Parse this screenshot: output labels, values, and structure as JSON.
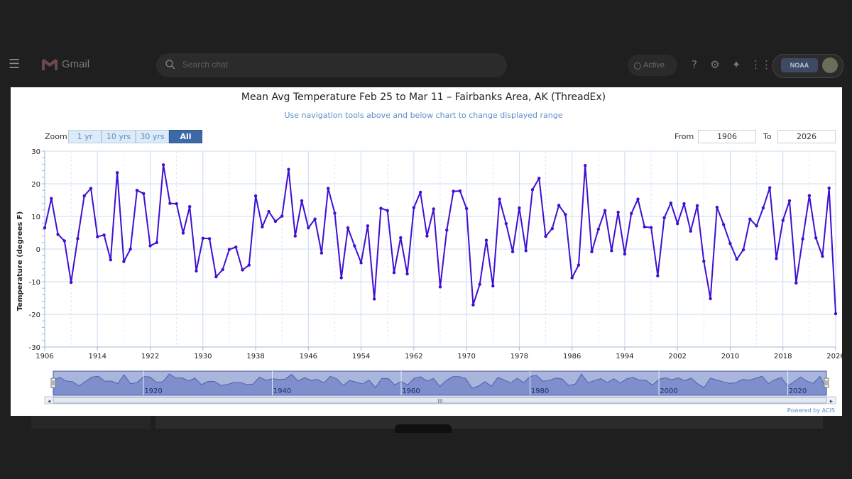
{
  "gmail": {
    "app_name": "Gmail",
    "search_placeholder": "Search chat",
    "status": "Active",
    "account_badge": "NOAA"
  },
  "chart_controls": {
    "zoom_label": "Zoom",
    "zoom_options": [
      "1 yr",
      "10 yrs",
      "30 yrs",
      "All"
    ],
    "zoom_selected": "All",
    "from_label": "From",
    "from_value": "1906",
    "to_label": "To",
    "to_value": "2026",
    "powered_by": "Powered by ACIS"
  },
  "chart_data": {
    "type": "line",
    "title": "Mean Avg Temperature Feb 25 to Mar 11 – Fairbanks Area, AK (ThreadEx)",
    "subtitle": "Use navigation tools above and below chart to change displayed range",
    "xlabel": "",
    "ylabel": "Temperature (degrees F)",
    "xlim": [
      1906,
      2026
    ],
    "ylim": [
      -30,
      30
    ],
    "x_ticks": [
      1906,
      1914,
      1922,
      1930,
      1938,
      1946,
      1954,
      1962,
      1970,
      1978,
      1986,
      1994,
      2002,
      2010,
      2018,
      2026
    ],
    "y_ticks": [
      -30,
      -20,
      -10,
      0,
      10,
      20,
      30
    ],
    "navigator_ticks": [
      1920,
      1940,
      1960,
      1980,
      2000,
      2020
    ],
    "series": [
      {
        "name": "Mean Avg Temperature",
        "color": "#3f0fd2",
        "x": [
          1906,
          1907,
          1908,
          1909,
          1910,
          1911,
          1912,
          1913,
          1914,
          1915,
          1916,
          1917,
          1918,
          1919,
          1920,
          1921,
          1922,
          1923,
          1924,
          1925,
          1926,
          1927,
          1928,
          1929,
          1930,
          1931,
          1932,
          1933,
          1934,
          1935,
          1936,
          1937,
          1938,
          1939,
          1940,
          1941,
          1942,
          1943,
          1944,
          1945,
          1946,
          1947,
          1948,
          1949,
          1950,
          1951,
          1952,
          1953,
          1954,
          1955,
          1956,
          1957,
          1958,
          1959,
          1960,
          1961,
          1962,
          1963,
          1964,
          1965,
          1966,
          1967,
          1968,
          1969,
          1970,
          1971,
          1972,
          1973,
          1974,
          1975,
          1976,
          1977,
          1978,
          1979,
          1980,
          1981,
          1982,
          1983,
          1984,
          1985,
          1986,
          1987,
          1988,
          1989,
          1990,
          1991,
          1992,
          1993,
          1994,
          1995,
          1996,
          1997,
          1998,
          1999,
          2000,
          2001,
          2002,
          2003,
          2004,
          2005,
          2006,
          2007,
          2008,
          2009,
          2010,
          2011,
          2012,
          2013,
          2014,
          2015,
          2016,
          2017,
          2018,
          2019,
          2020,
          2021,
          2022,
          2023,
          2024,
          2025,
          2026
        ],
        "values": [
          6.5,
          15.5,
          4.5,
          2.5,
          -10.2,
          3.2,
          16.3,
          18.6,
          3.8,
          4.3,
          -3.3,
          23.4,
          -3.8,
          0,
          18,
          17,
          1,
          2,
          25.8,
          14,
          13.9,
          4.9,
          13,
          -6.7,
          3.3,
          3.2,
          -8.5,
          -6.3,
          -0.1,
          0.6,
          -6.4,
          -4.9,
          16.3,
          6.8,
          11.5,
          8.5,
          10.1,
          24.4,
          4,
          14.8,
          6.5,
          9.2,
          -1.2,
          18.6,
          11,
          -8.8,
          6.5,
          1,
          -4.2,
          7.1,
          -15.3,
          12.5,
          11.8,
          -7.2,
          3.5,
          -7.6,
          12.7,
          17.4,
          4,
          12.3,
          -11.6,
          5.8,
          17.7,
          17.8,
          12.4,
          -17.1,
          -10.8,
          2.7,
          -11.3,
          15.3,
          7.8,
          -0.8,
          12.6,
          -0.5,
          18.2,
          21.7,
          3.9,
          6.3,
          13.4,
          10.6,
          -8.8,
          -4.9,
          25.6,
          -0.8,
          6.1,
          11.8,
          -0.5,
          11.3,
          -1.5,
          10.9,
          15.3,
          6.8,
          6.6,
          -8.2,
          9.6,
          14.1,
          7.8,
          13.9,
          5.5,
          13.3,
          -3.7,
          -15.2,
          12.8,
          7.5,
          1.7,
          -3.1,
          -0.2,
          9.2,
          7.1,
          12.6,
          18.8,
          -2.9,
          8.8,
          14.8,
          -10.4,
          3.1,
          16.4,
          3.4,
          -2.2,
          18.7,
          -19.8
        ]
      }
    ]
  }
}
